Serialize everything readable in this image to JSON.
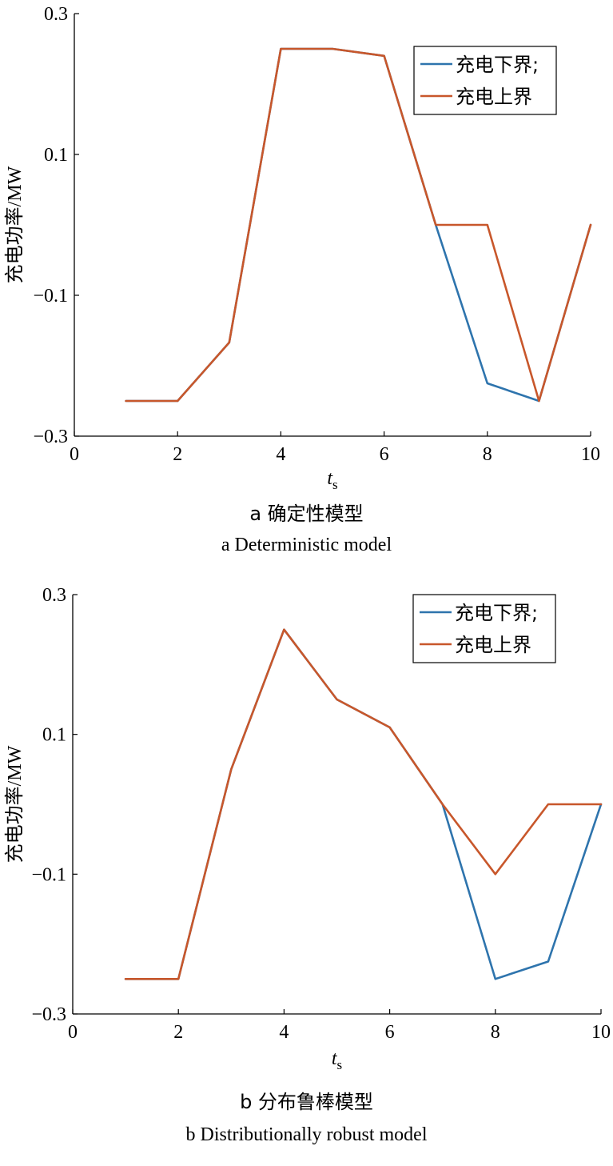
{
  "colors": {
    "lower": "#2e74ad",
    "upper": "#c8572b"
  },
  "chart_data": [
    {
      "type": "line",
      "ylabel": "充电功率/MW",
      "xlabel_main": "t",
      "xlabel_sub": "s",
      "xlim": [
        0,
        10
      ],
      "ylim": [
        -0.3,
        0.3
      ],
      "xticks": [
        0,
        2,
        4,
        6,
        8,
        10
      ],
      "yticks": [
        0.3,
        0.1,
        -0.1,
        -0.3
      ],
      "ytick_labels": [
        "0.3",
        "0.1",
        "−0.1",
        "−0.3"
      ],
      "legend_position": "top-right",
      "x": [
        1,
        2,
        3,
        4,
        5,
        6,
        7,
        8,
        9,
        10
      ],
      "series": [
        {
          "name": "充电下界;",
          "key": "lower",
          "values": [
            -0.25,
            -0.25,
            -0.167,
            0.25,
            0.25,
            0.24,
            0.0,
            -0.225,
            -0.25,
            0.0
          ]
        },
        {
          "name": "充电上界",
          "key": "upper",
          "values": [
            -0.25,
            -0.25,
            -0.167,
            0.25,
            0.25,
            0.24,
            0.0,
            0.0,
            -0.25,
            0.0
          ]
        }
      ],
      "caption_cn": "a  确定性模型",
      "caption_en": "a  Deterministic model"
    },
    {
      "type": "line",
      "ylabel": "充电功率/MW",
      "xlabel_main": "t",
      "xlabel_sub": "s",
      "xlim": [
        0,
        10
      ],
      "ylim": [
        -0.3,
        0.3
      ],
      "xticks": [
        0,
        2,
        4,
        6,
        8,
        10
      ],
      "yticks": [
        0.3,
        0.1,
        -0.1,
        -0.3
      ],
      "ytick_labels": [
        "0.3",
        "0.1",
        "−0.1",
        "−0.3"
      ],
      "legend_position": "top-right",
      "x": [
        1,
        2,
        3,
        4,
        5,
        6,
        7,
        8,
        9,
        10
      ],
      "series": [
        {
          "name": "充电下界;",
          "key": "lower",
          "values": [
            -0.25,
            -0.25,
            0.05,
            0.25,
            0.15,
            0.11,
            0.0,
            -0.25,
            -0.225,
            0.0
          ]
        },
        {
          "name": "充电上界",
          "key": "upper",
          "values": [
            -0.25,
            -0.25,
            0.05,
            0.25,
            0.15,
            0.11,
            0.0,
            -0.1,
            0.0,
            0.0
          ]
        }
      ],
      "caption_cn": "b  分布鲁棒模型",
      "caption_en": "b  Distributionally robust model"
    }
  ]
}
